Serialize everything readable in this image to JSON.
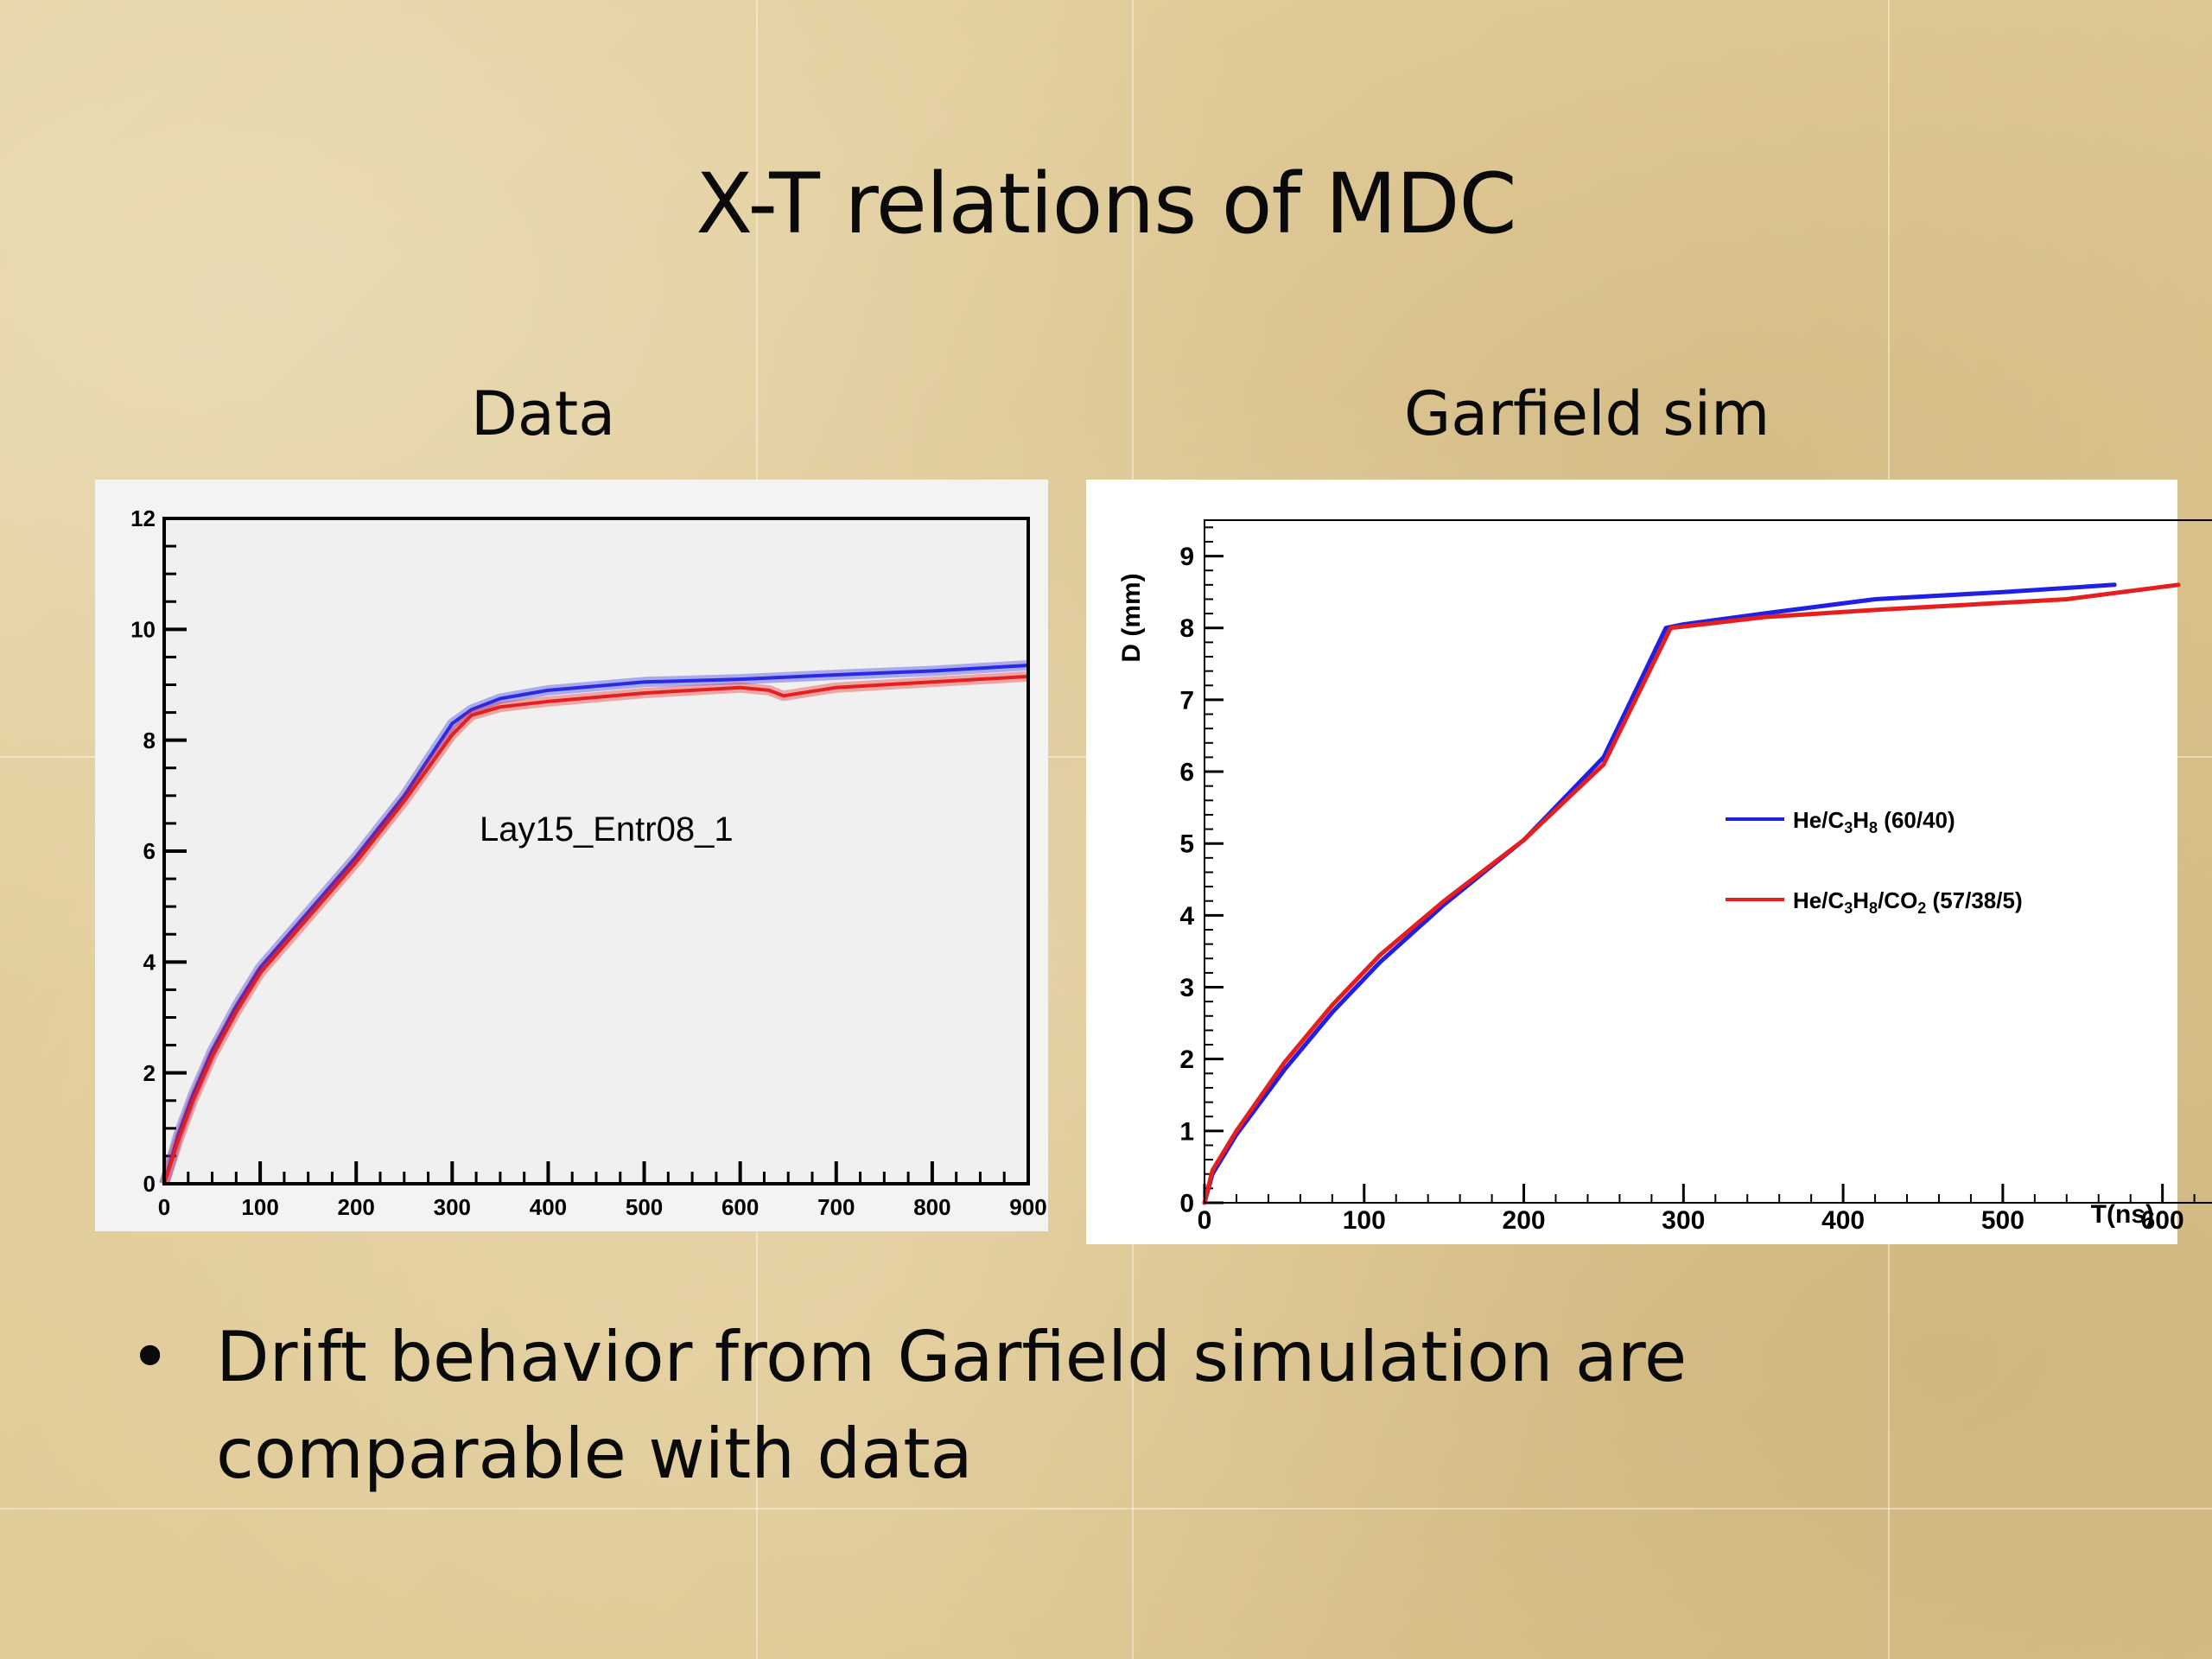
{
  "slide": {
    "title": "X-T relations of MDC",
    "left_caption": "Data",
    "right_caption": "Garfield sim",
    "bullet_symbol": "•",
    "bullet_text": "Drift behavior from Garfield simulation are comparable with data"
  },
  "chart_data": [
    {
      "type": "line",
      "title": "",
      "annotation": "Lay15_Entr08_1",
      "xlabel": "",
      "ylabel": "",
      "xlim": [
        0,
        900
      ],
      "ylim": [
        0,
        12
      ],
      "x_ticks": [
        0,
        100,
        200,
        300,
        400,
        500,
        600,
        700,
        800,
        900
      ],
      "y_ticks": [
        0,
        2,
        4,
        6,
        8,
        10,
        12
      ],
      "grid": false,
      "legend": "none",
      "series": [
        {
          "color": "#2a2ae6",
          "x": [
            0,
            15,
            30,
            50,
            75,
            100,
            130,
            160,
            200,
            250,
            300,
            320,
            350,
            400,
            500,
            600,
            700,
            800,
            900
          ],
          "y": [
            0,
            0.9,
            1.6,
            2.4,
            3.2,
            3.9,
            4.5,
            5.1,
            5.9,
            7.0,
            8.3,
            8.55,
            8.75,
            8.9,
            9.05,
            9.1,
            9.18,
            9.25,
            9.35
          ]
        },
        {
          "color": "#e61e1e",
          "x": [
            0,
            15,
            30,
            50,
            75,
            100,
            130,
            160,
            200,
            250,
            300,
            320,
            350,
            400,
            500,
            600,
            630,
            645,
            700,
            800,
            900
          ],
          "y": [
            0,
            0.8,
            1.5,
            2.3,
            3.1,
            3.8,
            4.4,
            5.0,
            5.8,
            6.9,
            8.1,
            8.45,
            8.6,
            8.7,
            8.85,
            8.95,
            8.9,
            8.8,
            8.95,
            9.05,
            9.15
          ]
        }
      ]
    },
    {
      "type": "line",
      "title": "",
      "xlabel": "T(ns)",
      "ylabel": "D (mm)",
      "xlim": [
        0,
        670
      ],
      "ylim": [
        0,
        9.5
      ],
      "x_ticks": [
        0,
        100,
        200,
        300,
        400,
        500,
        600
      ],
      "y_ticks": [
        0,
        1,
        2,
        3,
        4,
        5,
        6,
        7,
        8,
        9
      ],
      "grid": false,
      "legend": "center-right",
      "series": [
        {
          "name": "He/C3H8 (60/40)",
          "color": "#1f1fe6",
          "x": [
            0,
            5,
            20,
            50,
            80,
            110,
            150,
            200,
            250,
            289,
            300,
            350,
            420,
            500,
            570
          ],
          "y": [
            0,
            0.4,
            0.95,
            1.85,
            2.65,
            3.35,
            4.15,
            5.05,
            6.2,
            8.0,
            8.05,
            8.2,
            8.4,
            8.5,
            8.6
          ]
        },
        {
          "name": "He/C3H8/CO2 (57/38/5)",
          "color": "#e61e1e",
          "x": [
            0,
            5,
            20,
            50,
            80,
            110,
            150,
            200,
            250,
            292,
            300,
            350,
            420,
            540,
            610
          ],
          "y": [
            0,
            0.45,
            1.0,
            1.95,
            2.75,
            3.45,
            4.2,
            5.05,
            6.1,
            8.0,
            8.02,
            8.15,
            8.25,
            8.4,
            8.6
          ]
        }
      ]
    }
  ]
}
